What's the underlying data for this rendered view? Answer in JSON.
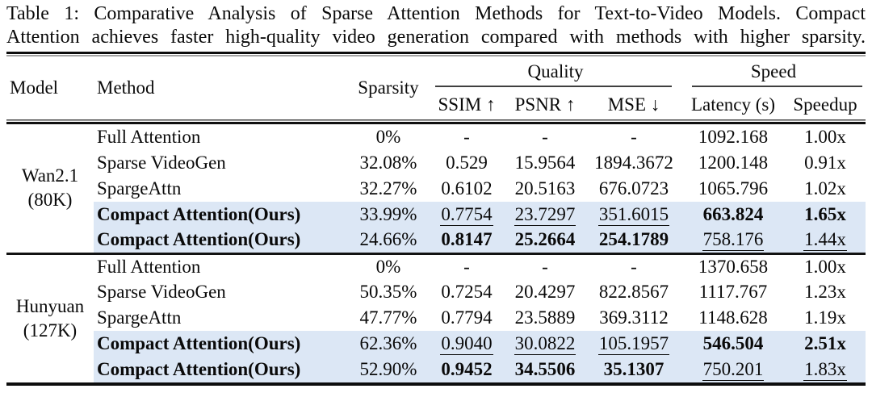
{
  "caption_lines": [
    "Table 1: Comparative Analysis of Sparse Attention Methods for Text-to-Video Models. Compact",
    "Attention achieves faster high-quality video generation compared with methods with higher sparsity."
  ],
  "colors": {
    "highlight": "#dce7f5",
    "text": "#0a0a0a"
  },
  "header": {
    "model": "Model",
    "method": "Method",
    "sparsity": "Sparsity",
    "quality_group": "Quality",
    "speed_group": "Speed",
    "ssim": "SSIM ↑",
    "psnr": "PSNR ↑",
    "mse": "MSE ↓",
    "latency": "Latency (s)",
    "speedup": "Speedup"
  },
  "groups": [
    {
      "model_lines": [
        "Wan2.1",
        "(80K)"
      ],
      "rows": [
        {
          "method": "Full Attention",
          "bold_method": false,
          "highlight": false,
          "cells": [
            {
              "v": "0%"
            },
            {
              "v": "-"
            },
            {
              "v": "-"
            },
            {
              "v": "-"
            },
            {
              "v": "1092.168"
            },
            {
              "v": "1.00x"
            }
          ]
        },
        {
          "method": "Sparse VideoGen",
          "bold_method": false,
          "highlight": false,
          "cells": [
            {
              "v": "32.08%"
            },
            {
              "v": "0.529"
            },
            {
              "v": "15.9564"
            },
            {
              "v": "1894.3672"
            },
            {
              "v": "1200.148"
            },
            {
              "v": "0.91x"
            }
          ]
        },
        {
          "method": "SpargeAttn",
          "bold_method": false,
          "highlight": false,
          "cells": [
            {
              "v": "32.27%"
            },
            {
              "v": "0.6102"
            },
            {
              "v": "20.5163"
            },
            {
              "v": "676.0723"
            },
            {
              "v": "1065.796"
            },
            {
              "v": "1.02x"
            }
          ]
        },
        {
          "method": "Compact Attention(Ours)",
          "bold_method": true,
          "highlight": true,
          "cells": [
            {
              "v": "33.99%"
            },
            {
              "v": "0.7754",
              "s": "u"
            },
            {
              "v": "23.7297",
              "s": "u"
            },
            {
              "v": "351.6015",
              "s": "u"
            },
            {
              "v": "663.824",
              "s": "b"
            },
            {
              "v": "1.65x",
              "s": "b"
            }
          ]
        },
        {
          "method": "Compact Attention(Ours)",
          "bold_method": true,
          "highlight": true,
          "cells": [
            {
              "v": "24.66%"
            },
            {
              "v": "0.8147",
              "s": "b"
            },
            {
              "v": "25.2664",
              "s": "b"
            },
            {
              "v": "254.1789",
              "s": "b"
            },
            {
              "v": "758.176",
              "s": "u"
            },
            {
              "v": "1.44x",
              "s": "u"
            }
          ]
        }
      ]
    },
    {
      "model_lines": [
        "Hunyuan",
        "(127K)"
      ],
      "rows": [
        {
          "method": "Full Attention",
          "bold_method": false,
          "highlight": false,
          "cells": [
            {
              "v": "0%"
            },
            {
              "v": "-"
            },
            {
              "v": "-"
            },
            {
              "v": "-"
            },
            {
              "v": "1370.658"
            },
            {
              "v": "1.00x"
            }
          ]
        },
        {
          "method": "Sparse VideoGen",
          "bold_method": false,
          "highlight": false,
          "cells": [
            {
              "v": "50.35%"
            },
            {
              "v": "0.7254"
            },
            {
              "v": "20.4297"
            },
            {
              "v": "822.8567"
            },
            {
              "v": "1117.767"
            },
            {
              "v": "1.23x"
            }
          ]
        },
        {
          "method": "SpargeAttn",
          "bold_method": false,
          "highlight": false,
          "cells": [
            {
              "v": "47.77%"
            },
            {
              "v": "0.7794"
            },
            {
              "v": "23.5889"
            },
            {
              "v": "369.3112"
            },
            {
              "v": "1148.628"
            },
            {
              "v": "1.19x"
            }
          ]
        },
        {
          "method": "Compact Attention(Ours)",
          "bold_method": true,
          "highlight": true,
          "cells": [
            {
              "v": "62.36%"
            },
            {
              "v": "0.9040",
              "s": "u"
            },
            {
              "v": "30.0822",
              "s": "u"
            },
            {
              "v": "105.1957",
              "s": "u"
            },
            {
              "v": "546.504",
              "s": "b"
            },
            {
              "v": "2.51x",
              "s": "b"
            }
          ]
        },
        {
          "method": "Compact Attention(Ours)",
          "bold_method": true,
          "highlight": true,
          "cells": [
            {
              "v": "52.90%"
            },
            {
              "v": "0.9452",
              "s": "b"
            },
            {
              "v": "34.5506",
              "s": "b"
            },
            {
              "v": "35.1307",
              "s": "b"
            },
            {
              "v": "750.201",
              "s": "u"
            },
            {
              "v": "1.83x",
              "s": "u"
            }
          ]
        }
      ]
    }
  ]
}
